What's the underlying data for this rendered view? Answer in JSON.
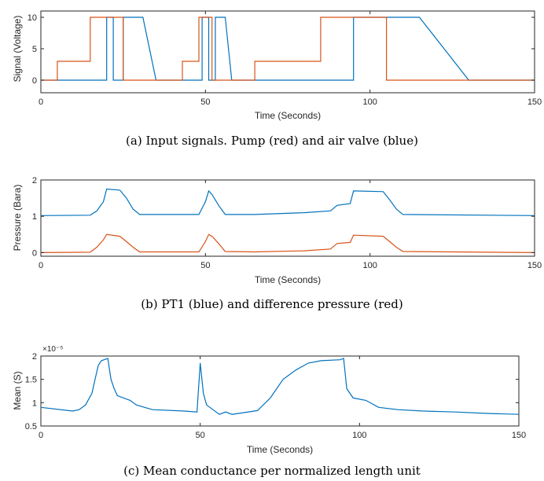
{
  "colors": {
    "blue": "#0072BD",
    "red": "#D95319",
    "axis": "#262626"
  },
  "chart_data": [
    {
      "type": "line",
      "caption": "(a) Input signals. Pump (red) and air valve (blue)",
      "xlabel": "Time (Seconds)",
      "ylabel": "Signal (Voltage)",
      "xlim": [
        0,
        150
      ],
      "ylim": [
        -2,
        11
      ],
      "xticks": [
        0,
        50,
        100,
        150
      ],
      "yticks": [
        0,
        5,
        10
      ],
      "series": [
        {
          "color": "#0072BD",
          "points": [
            [
              0,
              0
            ],
            [
              20,
              0
            ],
            [
              20,
              10
            ],
            [
              22,
              10
            ],
            [
              22,
              0
            ],
            [
              25,
              0
            ],
            [
              25,
              10
            ],
            [
              31,
              10
            ],
            [
              35,
              0
            ],
            [
              49,
              0
            ],
            [
              49,
              10
            ],
            [
              51,
              10
            ],
            [
              51,
              0
            ],
            [
              53,
              0
            ],
            [
              53,
              10
            ],
            [
              56,
              10
            ],
            [
              58,
              0
            ],
            [
              95,
              0
            ],
            [
              95,
              10
            ],
            [
              115,
              10
            ],
            [
              130,
              0
            ],
            [
              150,
              0
            ]
          ]
        },
        {
          "color": "#D95319",
          "points": [
            [
              0,
              0
            ],
            [
              5,
              0
            ],
            [
              5,
              3
            ],
            [
              15,
              3
            ],
            [
              15,
              10
            ],
            [
              25,
              10
            ],
            [
              25,
              0
            ],
            [
              43,
              0
            ],
            [
              43,
              3
            ],
            [
              48,
              3
            ],
            [
              48,
              10
            ],
            [
              52,
              10
            ],
            [
              52,
              0
            ],
            [
              65,
              0
            ],
            [
              65,
              3
            ],
            [
              85,
              3
            ],
            [
              85,
              10
            ],
            [
              105,
              10
            ],
            [
              105,
              0
            ],
            [
              150,
              0
            ]
          ]
        }
      ]
    },
    {
      "type": "line",
      "caption": "(b) PT1 (blue) and difference pressure (red)",
      "xlabel": "Time (Seconds)",
      "ylabel": "Pressure (Bara)",
      "xlim": [
        0,
        150
      ],
      "ylim": [
        -0.1,
        2
      ],
      "xticks": [
        0,
        50,
        100,
        150
      ],
      "yticks": [
        0,
        1,
        2
      ],
      "series": [
        {
          "color": "#0072BD",
          "points": [
            [
              0,
              1.02
            ],
            [
              15,
              1.03
            ],
            [
              17,
              1.15
            ],
            [
              19,
              1.4
            ],
            [
              20,
              1.75
            ],
            [
              24,
              1.72
            ],
            [
              26,
              1.5
            ],
            [
              28,
              1.2
            ],
            [
              30,
              1.05
            ],
            [
              48,
              1.05
            ],
            [
              50,
              1.4
            ],
            [
              51,
              1.7
            ],
            [
              52,
              1.6
            ],
            [
              54,
              1.3
            ],
            [
              56,
              1.05
            ],
            [
              65,
              1.05
            ],
            [
              80,
              1.1
            ],
            [
              88,
              1.15
            ],
            [
              90,
              1.3
            ],
            [
              94,
              1.35
            ],
            [
              95,
              1.7
            ],
            [
              104,
              1.68
            ],
            [
              106,
              1.45
            ],
            [
              108,
              1.2
            ],
            [
              110,
              1.05
            ],
            [
              150,
              1.02
            ]
          ]
        },
        {
          "color": "#D95319",
          "points": [
            [
              0,
              0
            ],
            [
              15,
              0.01
            ],
            [
              17,
              0.15
            ],
            [
              19,
              0.35
            ],
            [
              20,
              0.5
            ],
            [
              24,
              0.45
            ],
            [
              26,
              0.3
            ],
            [
              28,
              0.15
            ],
            [
              30,
              0.02
            ],
            [
              48,
              0.02
            ],
            [
              50,
              0.3
            ],
            [
              51,
              0.5
            ],
            [
              52,
              0.45
            ],
            [
              54,
              0.25
            ],
            [
              56,
              0.03
            ],
            [
              65,
              0.02
            ],
            [
              80,
              0.05
            ],
            [
              88,
              0.1
            ],
            [
              90,
              0.25
            ],
            [
              94,
              0.28
            ],
            [
              95,
              0.48
            ],
            [
              104,
              0.45
            ],
            [
              106,
              0.3
            ],
            [
              108,
              0.15
            ],
            [
              110,
              0.03
            ],
            [
              150,
              0
            ]
          ]
        }
      ]
    },
    {
      "type": "line",
      "caption": "(c) Mean conductance per normalized length unit",
      "xlabel": "Time (Seconds)",
      "ylabel": "Mean (S)",
      "exponent_label": "×10⁻⁵",
      "xlim": [
        0,
        150
      ],
      "ylim": [
        0.5,
        2
      ],
      "xticks": [
        0,
        50,
        100,
        150
      ],
      "yticks": [
        0.5,
        1,
        1.5,
        2
      ],
      "series": [
        {
          "color": "#0072BD",
          "points": [
            [
              0,
              0.9
            ],
            [
              10,
              0.82
            ],
            [
              12,
              0.85
            ],
            [
              14,
              0.95
            ],
            [
              16,
              1.2
            ],
            [
              17,
              1.5
            ],
            [
              18,
              1.8
            ],
            [
              19,
              1.9
            ],
            [
              21,
              1.95
            ],
            [
              22,
              1.5
            ],
            [
              23,
              1.3
            ],
            [
              24,
              1.15
            ],
            [
              26,
              1.1
            ],
            [
              28,
              1.05
            ],
            [
              30,
              0.95
            ],
            [
              35,
              0.85
            ],
            [
              45,
              0.82
            ],
            [
              49,
              0.8
            ],
            [
              50,
              1.85
            ],
            [
              51,
              1.2
            ],
            [
              52,
              0.95
            ],
            [
              54,
              0.85
            ],
            [
              56,
              0.75
            ],
            [
              58,
              0.8
            ],
            [
              60,
              0.75
            ],
            [
              68,
              0.83
            ],
            [
              72,
              1.1
            ],
            [
              76,
              1.5
            ],
            [
              80,
              1.7
            ],
            [
              84,
              1.85
            ],
            [
              88,
              1.9
            ],
            [
              94,
              1.92
            ],
            [
              95,
              1.95
            ],
            [
              96,
              1.3
            ],
            [
              98,
              1.1
            ],
            [
              102,
              1.05
            ],
            [
              106,
              0.9
            ],
            [
              112,
              0.85
            ],
            [
              120,
              0.82
            ],
            [
              130,
              0.8
            ],
            [
              140,
              0.77
            ],
            [
              150,
              0.75
            ]
          ]
        }
      ]
    }
  ]
}
